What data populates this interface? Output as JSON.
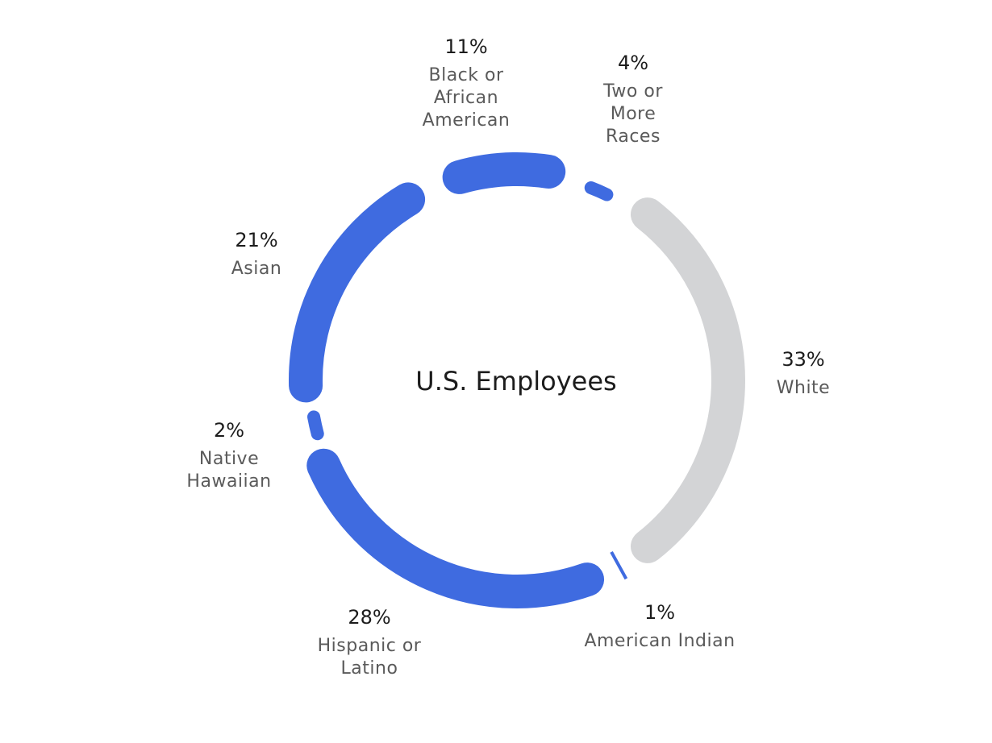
{
  "chart_data": {
    "type": "donut",
    "title": "U.S. Employees",
    "categories": [
      "White",
      "American Indian",
      "Hispanic or Latino",
      "Native Hawaiian",
      "Asian",
      "Black or African American",
      "Two or More Races"
    ],
    "values": [
      33,
      1,
      28,
      2,
      21,
      11,
      4
    ],
    "value_labels": [
      "33%",
      "1%",
      "28%",
      "2%",
      "21%",
      "11%",
      "4%"
    ],
    "colors": [
      "#d3d4d6",
      "#3f6be0",
      "#3f6be0",
      "#3f6be0",
      "#3f6be0",
      "#3f6be0",
      "#3f6be0"
    ]
  }
}
